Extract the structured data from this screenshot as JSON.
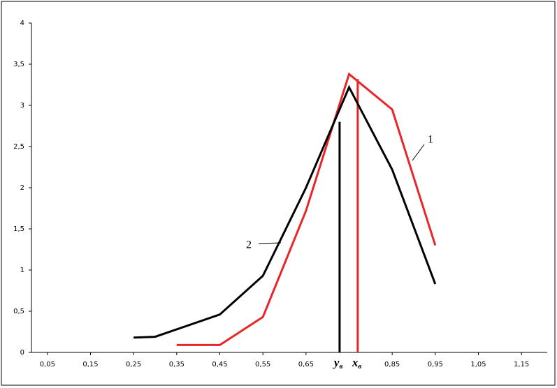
{
  "chart_data": {
    "type": "line",
    "series": [
      {
        "name": "1",
        "color": "#e8262a",
        "x": [
          0.35,
          0.45,
          0.55,
          0.65,
          0.75,
          0.85,
          0.95
        ],
        "values": [
          0.09,
          0.09,
          0.43,
          1.72,
          3.38,
          2.95,
          1.3
        ]
      },
      {
        "name": "2",
        "color": "#000000",
        "x": [
          0.25,
          0.3,
          0.45,
          0.55,
          0.65,
          0.75,
          0.85,
          0.95
        ],
        "values": [
          0.18,
          0.19,
          0.46,
          0.93,
          2.0,
          3.22,
          2.22,
          0.83
        ]
      }
    ],
    "markers": [
      {
        "label": "y",
        "subscript": "в",
        "x": 0.728,
        "top": 2.8,
        "color": "#000000"
      },
      {
        "label": "x",
        "subscript": "в",
        "x": 0.77,
        "top": 3.32,
        "color": "#e8262a"
      }
    ],
    "xlim": [
      0,
      1.2
    ],
    "ylim": [
      0,
      4
    ],
    "xticks": [
      {
        "value": 0.05,
        "label": "0,05"
      },
      {
        "value": 0.15,
        "label": "0,15"
      },
      {
        "value": 0.25,
        "label": "0,25"
      },
      {
        "value": 0.35,
        "label": "0,35"
      },
      {
        "value": 0.45,
        "label": "0,45"
      },
      {
        "value": 0.55,
        "label": "0,55"
      },
      {
        "value": 0.65,
        "label": "0,65"
      },
      {
        "value": 0.85,
        "label": "0,85"
      },
      {
        "value": 0.95,
        "label": "0,95"
      },
      {
        "value": 1.05,
        "label": "1,05"
      },
      {
        "value": 1.15,
        "label": "1,15"
      }
    ],
    "yticks": [
      0,
      {
        "value": 0.5,
        "label": "0,5"
      },
      1,
      {
        "value": 1.5,
        "label": "1,5"
      },
      2,
      {
        "value": 2.5,
        "label": "2,5"
      },
      3,
      {
        "value": 3.5,
        "label": "3,5"
      },
      4
    ]
  }
}
